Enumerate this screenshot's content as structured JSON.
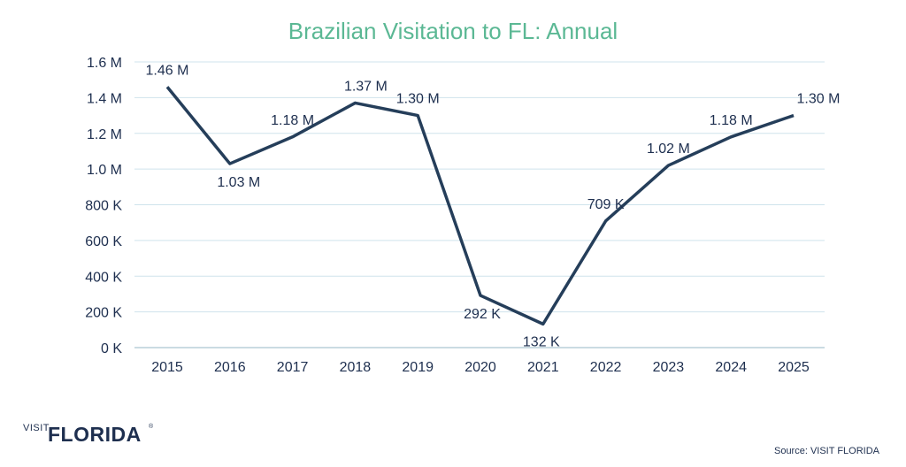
{
  "chart_data": {
    "type": "line",
    "title": "Brazilian Visitation to FL: Annual",
    "xlabel": "",
    "ylabel": "",
    "categories": [
      "2015",
      "2016",
      "2017",
      "2018",
      "2019",
      "2020",
      "2021",
      "2022",
      "2023",
      "2024",
      "2025"
    ],
    "values": [
      1460000,
      1030000,
      1180000,
      1370000,
      1300000,
      292000,
      132000,
      709000,
      1020000,
      1180000,
      1300000
    ],
    "data_labels": [
      "1.46 M",
      "1.03 M",
      "1.18 M",
      "1.37 M",
      "1.30 M",
      "292 K",
      "132 K",
      "709 K",
      "1.02 M",
      "1.18 M",
      "1.30 M"
    ],
    "ylim": [
      0,
      1600000
    ],
    "yticks": [
      0,
      200000,
      400000,
      600000,
      800000,
      1000000,
      1200000,
      1400000,
      1600000
    ],
    "ytick_labels": [
      "0 K",
      "200 K",
      "400 K",
      "600 K",
      "800 K",
      "1.0 M",
      "1.2 M",
      "1.4 M",
      "1.6 M"
    ],
    "grid": true,
    "line_color": "#253e5a",
    "title_color": "#5bb894",
    "gridline_color": "#cfe3ec"
  },
  "logo": {
    "visit": "VISIT",
    "florida": "FLORIDA",
    "tm": "®"
  },
  "source": "Source: VISIT FLORIDA"
}
